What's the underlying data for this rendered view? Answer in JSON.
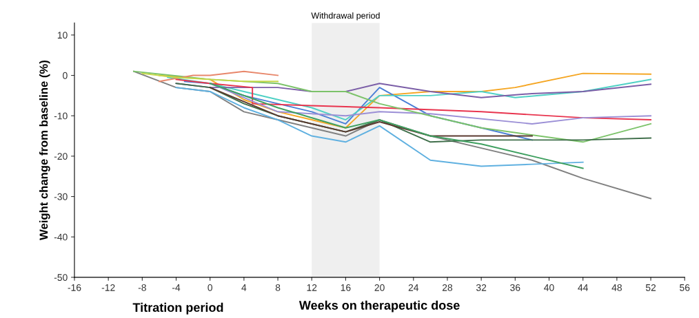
{
  "chart_data": {
    "type": "line",
    "xlabel": "Weeks on therapeutic dose",
    "ylabel": "Weight change from baseline (%)",
    "annotations": [
      "Titration period"
    ],
    "xlim": [
      -16,
      56
    ],
    "xticks": [
      -16,
      -12,
      -8,
      -4,
      0,
      4,
      8,
      12,
      16,
      20,
      24,
      28,
      32,
      36,
      40,
      44,
      48,
      52,
      56
    ],
    "ylim": [
      -50,
      13
    ],
    "yticks": [
      -50,
      -40,
      -30,
      -20,
      -10,
      0,
      10
    ],
    "grid": false,
    "legend": false,
    "marker": "none",
    "line_style": "solid",
    "bands": [
      {
        "axis": "x",
        "from": 12,
        "to": 20,
        "label": "Withdrawal period",
        "color": "#efefef"
      }
    ],
    "series": [
      {
        "color": "#808080",
        "x": [
          -9,
          -4,
          0,
          4,
          8,
          12,
          16,
          20,
          26,
          32,
          38,
          44,
          52
        ],
        "values": [
          1,
          -3,
          -4,
          -9,
          -11,
          -13,
          -15,
          -11,
          -15,
          -18,
          -21,
          -25.5,
          -30.5
        ]
      },
      {
        "color": "#f5a623",
        "x": [
          -6,
          0,
          4,
          8,
          12,
          16,
          20,
          26,
          32,
          36,
          44,
          52
        ],
        "values": [
          0,
          -1,
          -6,
          -9,
          -11,
          -13,
          -5,
          -4,
          -4,
          -3,
          0.5,
          0.3
        ]
      },
      {
        "color": "#4a7fd6",
        "x": [
          -3,
          0,
          4,
          8,
          12,
          16,
          20,
          26,
          32,
          38
        ],
        "values": [
          -1.5,
          -2,
          -5,
          -7,
          -9,
          -12,
          -3,
          -10,
          -13,
          -16
        ]
      },
      {
        "color": "#4fd1c5",
        "x": [
          -5,
          0,
          4,
          8,
          12,
          16,
          20,
          26,
          32,
          36,
          44,
          52
        ],
        "values": [
          -0.5,
          -2,
          -4,
          -6,
          -8,
          -11,
          -5,
          -5,
          -4,
          -5.5,
          -4,
          -1
        ]
      },
      {
        "color": "#7b5ea7",
        "x": [
          -4,
          0,
          4,
          8,
          12,
          16,
          20,
          26,
          32,
          38,
          44,
          52
        ],
        "values": [
          -2,
          -3,
          -3,
          -3,
          -4,
          -4,
          -2,
          -4,
          -5.5,
          -4.5,
          -4,
          -2.2
        ]
      },
      {
        "color": "#e8344e",
        "x": [
          -4,
          0,
          5,
          5,
          12,
          20,
          32,
          44,
          52
        ],
        "values": [
          -1,
          -2,
          -3,
          -7,
          -7.5,
          -8,
          -9,
          -10.5,
          -11
        ]
      },
      {
        "color": "#9b8fd6",
        "x": [
          0,
          8,
          16,
          20,
          26,
          38,
          44,
          52
        ],
        "values": [
          -2,
          -9,
          -10,
          -9,
          -9.5,
          -12,
          -10.5,
          -10
        ]
      },
      {
        "color": "#7cc36a",
        "x": [
          -9,
          0,
          8,
          12,
          16,
          20,
          26,
          32,
          44,
          52
        ],
        "values": [
          1,
          -1,
          -2,
          -4,
          -4,
          -7,
          -10,
          -13,
          -16.5,
          -12
        ]
      },
      {
        "color": "#3f6e4a",
        "x": [
          -4,
          0,
          4,
          8,
          16,
          20,
          26,
          32,
          44,
          52
        ],
        "values": [
          -2,
          -3,
          -7,
          -10,
          -14,
          -11,
          -16.5,
          -16,
          -16,
          -15.5
        ]
      },
      {
        "color": "#5a3a30",
        "x": [
          0,
          8,
          16,
          20,
          26,
          38
        ],
        "values": [
          -3,
          -10,
          -14,
          -11.5,
          -15,
          -15
        ]
      },
      {
        "color": "#5fb0e0",
        "x": [
          -4,
          0,
          4,
          8,
          12,
          16,
          20,
          26,
          32,
          38,
          44
        ],
        "values": [
          -3,
          -4,
          -8,
          -11,
          -15,
          -16.5,
          -12.5,
          -21,
          -22.5,
          -22,
          -21.5
        ]
      },
      {
        "color": "#3fa060",
        "x": [
          0,
          8,
          16,
          20,
          26,
          32,
          38,
          44
        ],
        "values": [
          -2,
          -8,
          -13,
          -11,
          -15,
          -17,
          -20,
          -23
        ]
      },
      {
        "color": "#e8876b",
        "x": [
          -6,
          -2,
          0,
          4,
          8
        ],
        "values": [
          -1.5,
          0,
          0,
          1,
          0
        ]
      },
      {
        "color": "#c5d84a",
        "x": [
          -8,
          -4,
          0,
          4,
          8
        ],
        "values": [
          0.5,
          -0.5,
          -1,
          -1.5,
          -1.5
        ]
      }
    ]
  }
}
